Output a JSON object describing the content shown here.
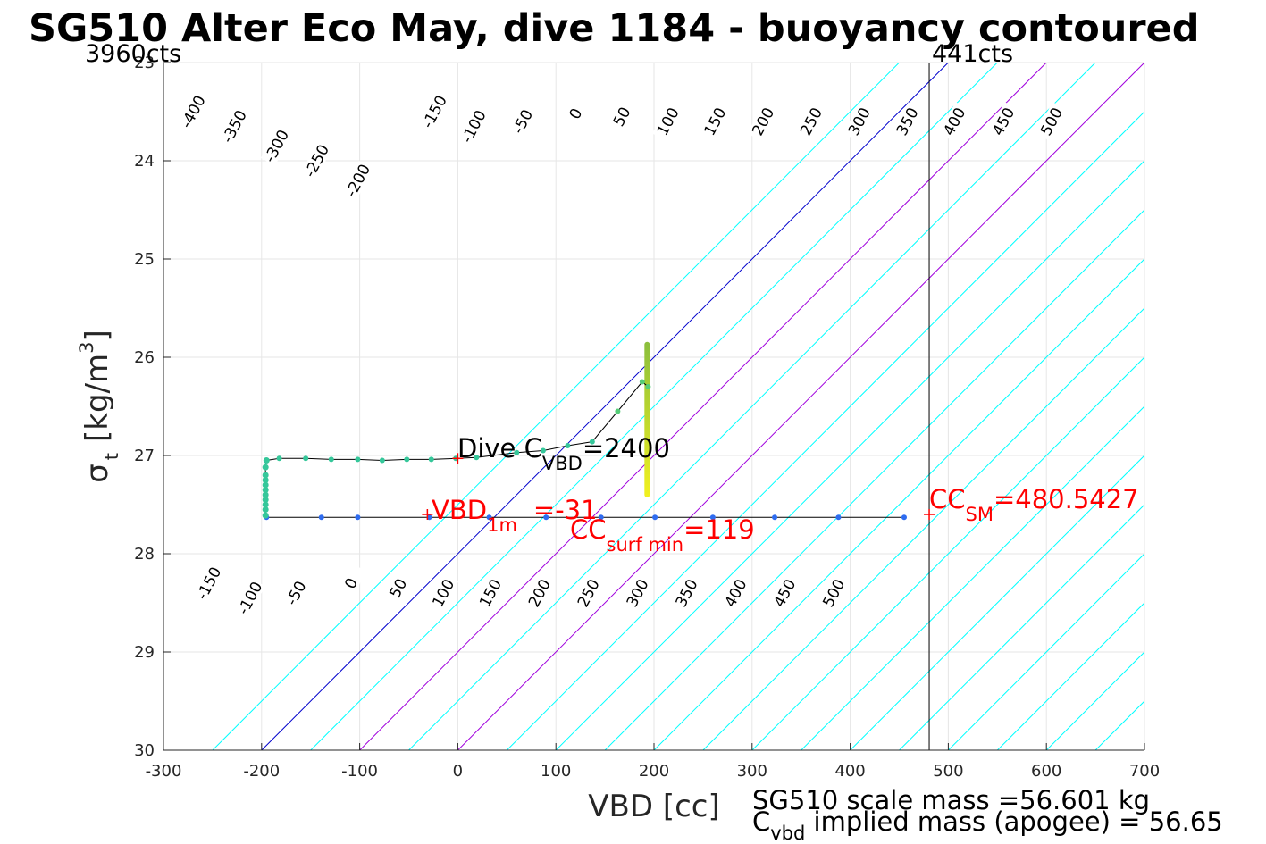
{
  "chart_data": {
    "type": "scatter",
    "title": "SG510 Alter Eco May, dive 1184 - buoyancy contoured",
    "xlabel": "VBD [cc]",
    "ylabel": {
      "main": "σ",
      "sub": "t",
      "unit": "[kg/m",
      "sup": "3",
      "close": "]"
    },
    "xlim": [
      -300,
      700
    ],
    "ylim": [
      23,
      30
    ],
    "y_reversed": true,
    "grid": true,
    "xticks": [
      -300,
      -200,
      -100,
      0,
      100,
      200,
      300,
      400,
      500,
      600,
      700
    ],
    "yticks": [
      23,
      24,
      25,
      26,
      27,
      28,
      29,
      30
    ],
    "corner_labels": {
      "left": "3960cts",
      "right": "441cts"
    },
    "contour_slope_cc_per_sigma": 100,
    "contour_lines": [
      {
        "x_at_30": -250,
        "color": "#00ffff"
      },
      {
        "x_at_30": -200,
        "color": "#0000cc"
      },
      {
        "x_at_30": -150,
        "color": "#00ffff"
      },
      {
        "x_at_30": -100,
        "color": "#a000dd"
      },
      {
        "x_at_30": -50,
        "color": "#00ffff"
      },
      {
        "x_at_30": 0,
        "color": "#a000dd"
      },
      {
        "x_at_30": 50,
        "color": "#00ffff"
      },
      {
        "x_at_30": 100,
        "color": "#00ffff"
      },
      {
        "x_at_30": 150,
        "color": "#00ffff"
      },
      {
        "x_at_30": 200,
        "color": "#00ffff"
      },
      {
        "x_at_30": 250,
        "color": "#00ffff"
      },
      {
        "x_at_30": 300,
        "color": "#00ffff"
      },
      {
        "x_at_30": 350,
        "color": "#00ffff"
      },
      {
        "x_at_30": 400,
        "color": "#00ffff"
      },
      {
        "x_at_30": 450,
        "color": "#00ffff"
      },
      {
        "x_at_30": 500,
        "color": "#00ffff"
      },
      {
        "x_at_30": 550,
        "color": "#00ffff"
      },
      {
        "x_at_30": 600,
        "color": "#00ffff"
      },
      {
        "x_at_30": 650,
        "color": "#00ffff"
      },
      {
        "x_at_30": 700,
        "color": "#00ffff"
      },
      {
        "x_at_30": 750,
        "color": "#00ffff"
      },
      {
        "x_at_30": 800,
        "color": "#00ffff"
      },
      {
        "x_at_30": 850,
        "color": "#00ffff"
      },
      {
        "x_at_30": 900,
        "color": "#00ffff"
      },
      {
        "x_at_30": 950,
        "color": "#00ffff"
      },
      {
        "x_at_30": 1000,
        "color": "#00ffff"
      },
      {
        "x_at_30": 1050,
        "color": "#00ffff"
      },
      {
        "x_at_30": 1100,
        "color": "#00ffff"
      },
      {
        "x_at_30": 1150,
        "color": "#00ffff"
      },
      {
        "x_at_30": 1200,
        "color": "#00ffff"
      }
    ],
    "contour_labels_upper": [
      {
        "text": "-400",
        "x": -270,
        "y": 23.5
      },
      {
        "text": "-350",
        "x": -228,
        "y": 23.65
      },
      {
        "text": "-300",
        "x": -185,
        "y": 23.85
      },
      {
        "text": "-250",
        "x": -144,
        "y": 24.0
      },
      {
        "text": "-200",
        "x": -102,
        "y": 24.2
      },
      {
        "text": "-150",
        "x": -24,
        "y": 23.5
      },
      {
        "text": "-100",
        "x": 16,
        "y": 23.65
      },
      {
        "text": "-50",
        "x": 66,
        "y": 23.6
      },
      {
        "text": "0",
        "x": 120,
        "y": 23.52
      },
      {
        "text": "50",
        "x": 167,
        "y": 23.55
      },
      {
        "text": "100",
        "x": 214,
        "y": 23.6
      },
      {
        "text": "150",
        "x": 262,
        "y": 23.6
      },
      {
        "text": "200",
        "x": 311,
        "y": 23.6
      },
      {
        "text": "250",
        "x": 360,
        "y": 23.6
      },
      {
        "text": "300",
        "x": 409,
        "y": 23.6
      },
      {
        "text": "350",
        "x": 458,
        "y": 23.6
      },
      {
        "text": "400",
        "x": 506,
        "y": 23.6
      },
      {
        "text": "450",
        "x": 556,
        "y": 23.6
      },
      {
        "text": "500",
        "x": 605,
        "y": 23.6
      }
    ],
    "contour_labels_lower": [
      {
        "text": "-150",
        "x": -254,
        "y": 28.3
      },
      {
        "text": "-100",
        "x": -212,
        "y": 28.45
      },
      {
        "text": "-50",
        "x": -165,
        "y": 28.4
      },
      {
        "text": "0",
        "x": -109,
        "y": 28.3
      },
      {
        "text": "50",
        "x": -61,
        "y": 28.35
      },
      {
        "text": "100",
        "x": -15,
        "y": 28.4
      },
      {
        "text": "150",
        "x": 33,
        "y": 28.4
      },
      {
        "text": "200",
        "x": 83,
        "y": 28.4
      },
      {
        "text": "250",
        "x": 133,
        "y": 28.4
      },
      {
        "text": "300",
        "x": 183,
        "y": 28.4
      },
      {
        "text": "350",
        "x": 233,
        "y": 28.4
      },
      {
        "text": "400",
        "x": 283,
        "y": 28.4
      },
      {
        "text": "450",
        "x": 333,
        "y": 28.4
      },
      {
        "text": "500",
        "x": 383,
        "y": 28.4
      }
    ],
    "vertical_line": {
      "x": 480.5427,
      "color": "#000000"
    },
    "dive_track": [
      [
        455,
        27.63
      ],
      [
        388,
        27.63
      ],
      [
        323,
        27.63
      ],
      [
        260,
        27.63
      ],
      [
        201,
        27.63
      ],
      [
        146,
        27.63
      ],
      [
        90,
        27.63
      ],
      [
        32,
        27.63
      ],
      [
        -29,
        27.63
      ],
      [
        -102,
        27.63
      ],
      [
        -139,
        27.63
      ],
      [
        -195,
        27.63
      ],
      [
        -196,
        27.61
      ],
      [
        -196,
        27.55
      ],
      [
        -196,
        27.5
      ],
      [
        -196,
        27.45
      ],
      [
        -196,
        27.4
      ],
      [
        -196,
        27.35
      ],
      [
        -196,
        27.3
      ],
      [
        -196,
        27.25
      ],
      [
        -196,
        27.2
      ],
      [
        -196,
        27.12
      ],
      [
        -195,
        27.05
      ],
      [
        -182,
        27.03
      ],
      [
        -155,
        27.03
      ],
      [
        -129,
        27.04
      ],
      [
        -102,
        27.04
      ],
      [
        -77,
        27.05
      ],
      [
        -52,
        27.04
      ],
      [
        -27,
        27.04
      ],
      [
        -2,
        27.03
      ],
      [
        19,
        27.02
      ],
      [
        60,
        26.97
      ],
      [
        87,
        26.95
      ],
      [
        112,
        26.9
      ],
      [
        137,
        26.86
      ],
      [
        163,
        26.55
      ],
      [
        188,
        26.25
      ],
      [
        194,
        26.3
      ]
    ],
    "dive_track_colors": {
      "dive": "#2e6cf0",
      "climb": "#35c79a",
      "apogee": "#55cc77"
    },
    "surface_bar": {
      "x": 193,
      "y_top": 25.87,
      "y_bottom": 27.4,
      "color_top": "#8cbf3c",
      "color_bottom": "#f0f020"
    },
    "markers": [
      {
        "x": 0,
        "y": 27.03,
        "color": "#ff0000"
      },
      {
        "x": -31,
        "y": 27.6,
        "color": "#ff0000"
      },
      {
        "x": 480.5427,
        "y": 27.6,
        "color": "#ff0000"
      }
    ],
    "annotations": {
      "dive_c": {
        "pre": "Dive C",
        "sub": "VBD",
        "post": "=2400",
        "color": "#000000"
      },
      "vbd_1m": {
        "pre": "VBD",
        "sub": "1m",
        "post": "=-31",
        "color": "#ff0000"
      },
      "cc_surf": {
        "pre": "CC",
        "sub": "surf min",
        "post": "=119",
        "color": "#ff0000"
      },
      "cc_sm": {
        "pre": "CC",
        "sub": "SM",
        "post": "=480.5427",
        "color": "#ff0000"
      }
    },
    "footnotes": {
      "line1": "SG510 scale mass =56.601 kg",
      "line2_pre": "C",
      "line2_sub": "vbd",
      "line2_post": " implied mass (apogee) = 56.65"
    }
  }
}
